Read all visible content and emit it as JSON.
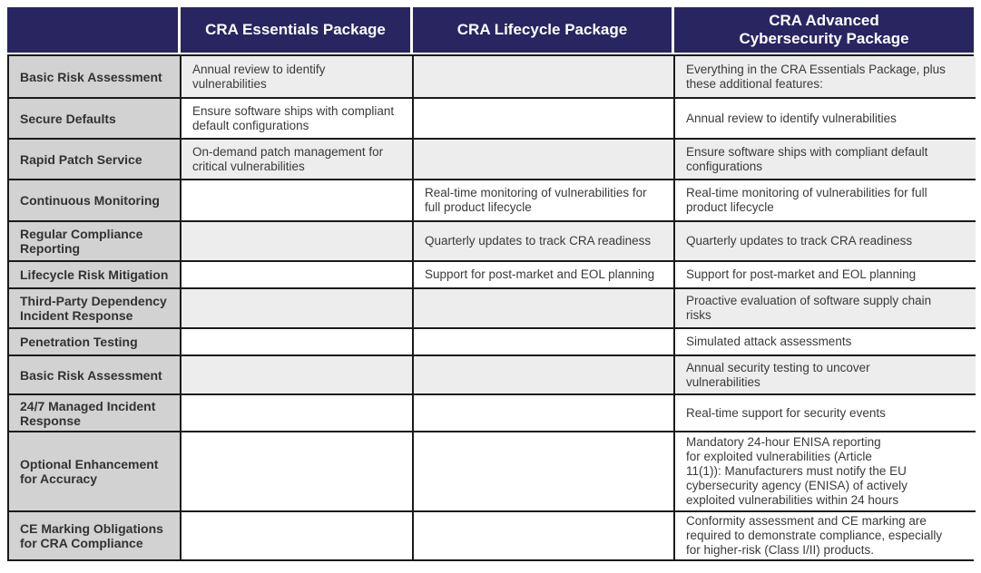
{
  "header": {
    "feature": "",
    "essentials": "CRA Essentials Package",
    "lifecycle": "CRA Lifecycle Package",
    "advanced": "CRA Advanced\nCybersecurity Package"
  },
  "rows": [
    {
      "label": "Basic Risk Assessment",
      "essentials": "Annual review to identify\nvulnerabilities",
      "lifecycle": "",
      "advanced": "Everything in the CRA Essentials Package, plus\nthese additional features:",
      "shaded": true
    },
    {
      "label": "Secure Defaults",
      "essentials": "Ensure software ships with compliant\ndefault configurations",
      "lifecycle": "",
      "advanced": "Annual review to identify vulnerabilities",
      "shaded": false
    },
    {
      "label": "Rapid Patch Service",
      "essentials": "On-demand patch management for\ncritical vulnerabilities",
      "lifecycle": "",
      "advanced": "Ensure software ships with compliant default\nconfigurations",
      "shaded": true
    },
    {
      "label": "Continuous Monitoring",
      "essentials": "",
      "lifecycle": "Real-time monitoring of vulnerabilities for\nfull product lifecycle",
      "advanced": "Real-time monitoring of vulnerabilities for full\nproduct lifecycle",
      "shaded": false
    },
    {
      "label": "Regular Compliance\nReporting",
      "essentials": "",
      "lifecycle": "Quarterly updates to track CRA readiness",
      "advanced": "Quarterly updates to track CRA readiness",
      "shaded": true
    },
    {
      "label": "Lifecycle Risk Mitigation",
      "essentials": "",
      "lifecycle": "Support for post-market and EOL planning",
      "advanced": "Support for post-market and EOL planning",
      "shaded": false
    },
    {
      "label": "Third-Party Dependency\nIncident Response",
      "essentials": "",
      "lifecycle": "",
      "advanced": "Proactive evaluation of software supply chain\nrisks",
      "shaded": true
    },
    {
      "label": "Penetration Testing",
      "essentials": "",
      "lifecycle": "",
      "advanced": "Simulated attack assessments",
      "shaded": false
    },
    {
      "label": "Basic Risk Assessment",
      "essentials": "",
      "lifecycle": "",
      "advanced": "Annual security testing to uncover\nvulnerabilities",
      "shaded": true
    },
    {
      "label": "24/7 Managed Incident\nResponse",
      "essentials": "",
      "lifecycle": "",
      "advanced": "Real-time support for security events",
      "shaded": false
    },
    {
      "label": "Optional Enhancement\nfor Accuracy",
      "essentials": "",
      "lifecycle": "",
      "advanced": "Mandatory 24-hour ENISA reporting\nfor exploited vulnerabilities (Article\n11(1)): Manufacturers must notify the EU\ncybersecurity agency (ENISA) of actively\nexploited vulnerabilities within 24 hours",
      "shaded": false
    },
    {
      "label": "CE Marking Obligations\nfor CRA Compliance",
      "essentials": "",
      "lifecycle": "",
      "advanced": "Conformity assessment and CE marking are\nrequired to demonstrate compliance, especially\nfor higher-risk (Class I/II) products.",
      "shaded": false
    }
  ],
  "colors": {
    "header_bg": "#282560",
    "header_text": "#ffffff",
    "label_bg": "#d2d2d3",
    "shaded_bg": "#ededee",
    "border": "#1a1a1a"
  }
}
